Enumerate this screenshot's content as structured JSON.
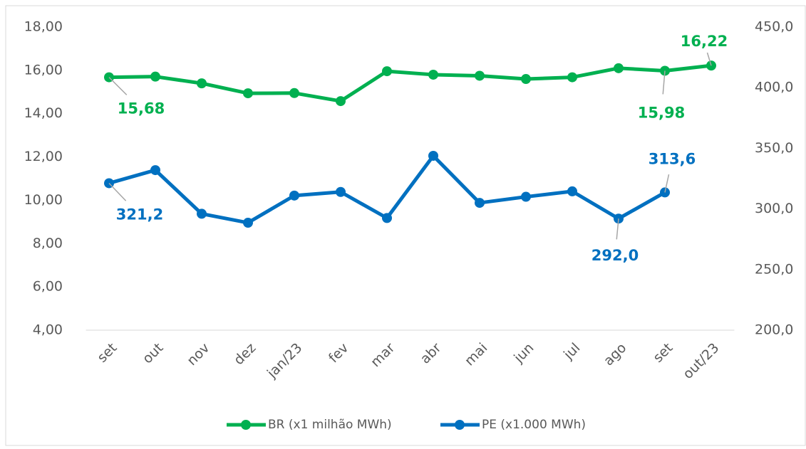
{
  "chart_data": {
    "type": "line",
    "categories": [
      "set",
      "out",
      "nov",
      "dez",
      "jan/23",
      "fev",
      "mar",
      "abr",
      "mai",
      "jun",
      "jul",
      "ago",
      "set",
      "out/23"
    ],
    "series": [
      {
        "name": "BR (x1 milhão MWh)",
        "color": "#00b050",
        "values": [
          15.68,
          15.71,
          15.4,
          14.94,
          14.95,
          14.58,
          15.96,
          15.8,
          15.75,
          15.6,
          15.68,
          16.1,
          15.98,
          16.22
        ],
        "value_labels": [
          "15,68",
          null,
          null,
          null,
          null,
          null,
          null,
          null,
          null,
          null,
          null,
          null,
          "15,98",
          "16,22"
        ]
      },
      {
        "name": "PE (x1.000 MWh)",
        "color": "#0070c0",
        "axis": "y2",
        "values": [
          321.2,
          332,
          296,
          288.6,
          311,
          314,
          292.5,
          343.8,
          305,
          310,
          314.5,
          292.0,
          313.6,
          null
        ],
        "value_labels": [
          "321,2",
          null,
          null,
          null,
          null,
          null,
          null,
          null,
          null,
          null,
          null,
          "292,0",
          "313,6",
          null
        ]
      }
    ],
    "ylim": [
      4,
      18
    ],
    "yticks": [
      {
        "value": 4,
        "label": "4,00"
      },
      {
        "value": 6,
        "label": "6,00"
      },
      {
        "value": 8,
        "label": "8,00"
      },
      {
        "value": 10,
        "label": "10,00"
      },
      {
        "value": 12,
        "label": "12,00"
      },
      {
        "value": 14,
        "label": "14,00"
      },
      {
        "value": 16,
        "label": "16,00"
      },
      {
        "value": 18,
        "label": "18,00"
      }
    ],
    "y2lim": [
      200,
      450
    ],
    "y2ticks": [
      {
        "value": 200,
        "label": "200,0"
      },
      {
        "value": 250,
        "label": "250,0"
      },
      {
        "value": 300,
        "label": "300,0"
      },
      {
        "value": 350,
        "label": "350,0"
      },
      {
        "value": 400,
        "label": "400,0"
      },
      {
        "value": 450,
        "label": "450,0"
      }
    ],
    "grid": false,
    "legend": "bottom"
  }
}
